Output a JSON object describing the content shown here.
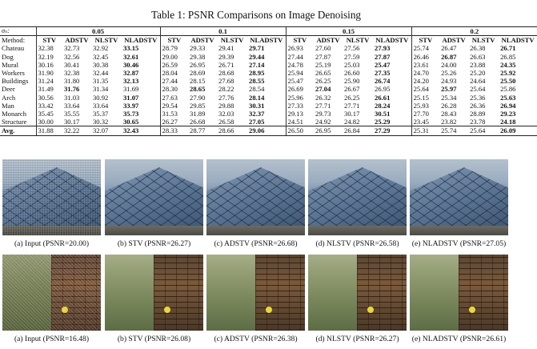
{
  "caption": "Table 1: PSNR Comparisons on Image Denoising",
  "table": {
    "sigma_label": "σₙ:",
    "method_label": "Method:",
    "noise_levels": [
      "0.05",
      "0.1",
      "0.15",
      "0.2"
    ],
    "methods": [
      "STV",
      "ADSTV",
      "NLSTV",
      "NLADSTV"
    ],
    "rows": [
      {
        "name": "Chateau",
        "values": [
          "32.38",
          "32.73",
          "32.92",
          "33.15",
          "28.79",
          "29.33",
          "29.41",
          "29.71",
          "26.93",
          "27.60",
          "27.56",
          "27.93",
          "25.74",
          "26.47",
          "26.38",
          "26.71"
        ],
        "best": [
          3,
          7,
          11,
          15
        ]
      },
      {
        "name": "Dog",
        "values": [
          "32.19",
          "32.56",
          "32.45",
          "32.61",
          "29.00",
          "29.38",
          "29.39",
          "29.44",
          "27.44",
          "27.87",
          "27.59",
          "27.87",
          "26.46",
          "26.87",
          "26.63",
          "26.85"
        ],
        "best": [
          3,
          7,
          11,
          13
        ]
      },
      {
        "name": "Mural",
        "values": [
          "30.16",
          "30.41",
          "30.38",
          "30.46",
          "26.59",
          "26.95",
          "26.71",
          "27.14",
          "24.78",
          "25.19",
          "25.03",
          "25.47",
          "23.61",
          "24.00",
          "23.88",
          "24.35"
        ],
        "best": [
          3,
          7,
          11,
          15
        ]
      },
      {
        "name": "Workers",
        "values": [
          "31.90",
          "32.38",
          "32.44",
          "32.87",
          "28.04",
          "28.69",
          "28.68",
          "28.95",
          "25.94",
          "26.65",
          "26.60",
          "27.35",
          "24.70",
          "25.26",
          "25.20",
          "25.92"
        ],
        "best": [
          3,
          7,
          11,
          15
        ]
      },
      {
        "name": "Buildings",
        "values": [
          "31.24",
          "31.80",
          "31.35",
          "32.13",
          "27.44",
          "28.15",
          "27.68",
          "28.55",
          "25.47",
          "26.25",
          "25.90",
          "26.74",
          "24.20",
          "24.93",
          "24.64",
          "25.50"
        ],
        "best": [
          3,
          7,
          11,
          15
        ]
      },
      {
        "name": "Deer",
        "values": [
          "31.49",
          "31.76",
          "31.34",
          "31.69",
          "28.30",
          "28.65",
          "28.22",
          "28.54",
          "26.69",
          "27.04",
          "26.67",
          "26.95",
          "25.64",
          "25.97",
          "25.64",
          "25.86"
        ],
        "best": [
          1,
          5,
          9,
          13
        ]
      },
      {
        "name": "Arch",
        "values": [
          "30.56",
          "31.03",
          "30.92",
          "31.07",
          "27.63",
          "27.90",
          "27.76",
          "28.14",
          "25.96",
          "26.32",
          "26.25",
          "26.61",
          "25.15",
          "25.34",
          "25.36",
          "25.63"
        ],
        "best": [
          3,
          7,
          11,
          15
        ]
      },
      {
        "name": "Man",
        "values": [
          "33.42",
          "33.64",
          "33.64",
          "33.97",
          "29.54",
          "29.85",
          "29.88",
          "30.31",
          "27.33",
          "27.71",
          "27.71",
          "28.24",
          "25.93",
          "26.28",
          "26.36",
          "26.94"
        ],
        "best": [
          3,
          7,
          11,
          15
        ]
      },
      {
        "name": "Monarch",
        "values": [
          "35.45",
          "35.55",
          "35.37",
          "35.73",
          "31.53",
          "31.89",
          "32.03",
          "32.37",
          "29.13",
          "29.73",
          "30.17",
          "30.51",
          "27.70",
          "28.43",
          "28.89",
          "29.23"
        ],
        "best": [
          3,
          7,
          11,
          15
        ]
      },
      {
        "name": "Structure",
        "values": [
          "30.00",
          "30.17",
          "30.32",
          "30.65",
          "26.27",
          "26.68",
          "26.58",
          "27.05",
          "24.51",
          "24.92",
          "24.82",
          "25.29",
          "23.45",
          "23.82",
          "23.78",
          "24.18"
        ],
        "best": [
          3,
          7,
          11,
          15
        ]
      }
    ],
    "avg": {
      "name": "Avg.",
      "values": [
        "31.88",
        "32.22",
        "32.07",
        "32.43",
        "28.33",
        "28.77",
        "28.66",
        "29.06",
        "26.50",
        "26.95",
        "26.84",
        "27.29",
        "25.31",
        "25.74",
        "25.64",
        "26.09"
      ],
      "best": [
        3,
        7,
        11,
        15
      ]
    }
  },
  "figure_row1": [
    "(a) Input (PSNR=20.00)",
    "(b) STV (PSNR=26.27)",
    "(c) ADSTV (PSNR=26.68)",
    "(d) NLSTV (PSNR=26.58)",
    "(e) NLADSTV (PSNR=27.05)"
  ],
  "figure_row2": [
    "(a) Input (PSNR=16.48)",
    "(b) STV (PSNR=26.08)",
    "(c) ADSTV (PSNR=26.38)",
    "(d) NLSTV (PSNR=26.27)",
    "(e) NLADSTV (PSNR=26.61)"
  ]
}
